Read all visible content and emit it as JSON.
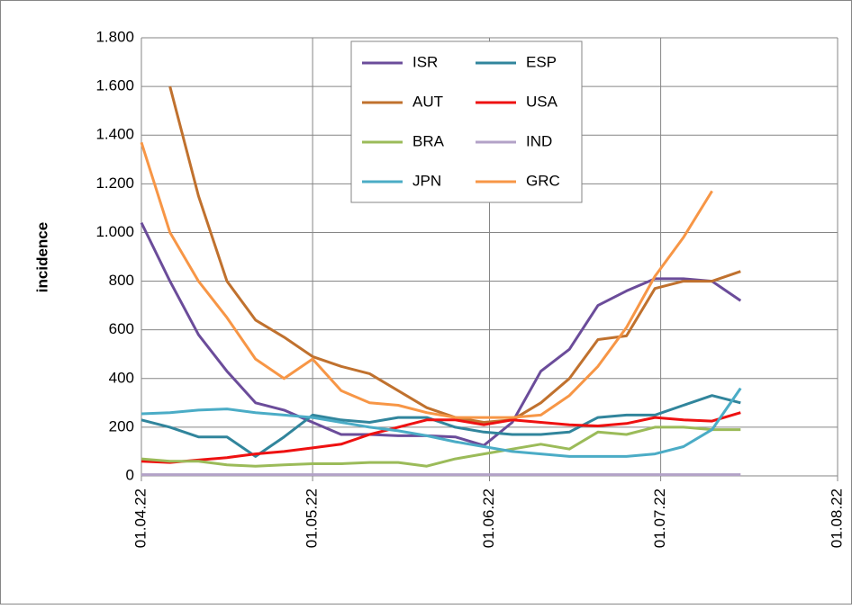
{
  "chart_data": {
    "type": "line",
    "y_label": "incidence",
    "x": [
      "2022-04-01",
      "2022-04-06",
      "2022-04-11",
      "2022-04-16",
      "2022-04-21",
      "2022-04-26",
      "2022-05-01",
      "2022-05-06",
      "2022-05-11",
      "2022-05-16",
      "2022-05-21",
      "2022-05-26",
      "2022-05-31",
      "2022-06-05",
      "2022-06-10",
      "2022-06-15",
      "2022-06-20",
      "2022-06-25",
      "2022-06-30",
      "2022-07-05",
      "2022-07-10",
      "2022-07-15"
    ],
    "xlim": [
      "2022-04-01",
      "2022-08-01"
    ],
    "xticks": [
      {
        "value": "2022-04-01",
        "label": "01.04.22"
      },
      {
        "value": "2022-05-01",
        "label": "01.05.22"
      },
      {
        "value": "2022-06-01",
        "label": "01.06.22"
      },
      {
        "value": "2022-07-01",
        "label": "01.07.22"
      },
      {
        "value": "2022-08-01",
        "label": "01.08.22"
      }
    ],
    "ylim": [
      0,
      1800
    ],
    "yticks": [
      0,
      200,
      400,
      600,
      800,
      {
        "value": 1000,
        "label": "1.000"
      },
      {
        "value": 1200,
        "label": "1.200"
      },
      {
        "value": 1400,
        "label": "1.400"
      },
      {
        "value": 1600,
        "label": "1.600"
      },
      {
        "value": 1800,
        "label": "1.800"
      }
    ],
    "grid": true,
    "legend": "top",
    "series": [
      {
        "name": "ISR",
        "color": "#6b4c9a",
        "values": [
          1040,
          800,
          580,
          430,
          300,
          270,
          220,
          170,
          170,
          165,
          165,
          160,
          125,
          220,
          430,
          520,
          700,
          760,
          810,
          810,
          800,
          720
        ]
      },
      {
        "name": "ESP",
        "color": "#31859c",
        "values": [
          230,
          200,
          160,
          160,
          80,
          160,
          250,
          230,
          220,
          240,
          240,
          200,
          180,
          170,
          170,
          180,
          240,
          250,
          250,
          290,
          330,
          300
        ]
      },
      {
        "name": "AUT",
        "color": "#c0712e",
        "values": [
          null,
          1600,
          1150,
          800,
          640,
          570,
          490,
          450,
          420,
          350,
          280,
          240,
          220,
          230,
          300,
          400,
          560,
          575,
          770,
          800,
          800,
          840
        ]
      },
      {
        "name": "USA",
        "color": "#ee1111",
        "values": [
          60,
          55,
          65,
          75,
          90,
          100,
          115,
          130,
          170,
          200,
          230,
          230,
          210,
          230,
          220,
          210,
          205,
          215,
          240,
          230,
          225,
          260
        ]
      },
      {
        "name": "BRA",
        "color": "#9bbb59",
        "values": [
          70,
          60,
          60,
          45,
          40,
          45,
          50,
          50,
          55,
          55,
          40,
          70,
          90,
          110,
          130,
          110,
          180,
          170,
          200,
          200,
          190,
          190
        ]
      },
      {
        "name": "IND",
        "color": "#b3a2c7",
        "values": [
          5,
          5,
          5,
          5,
          5,
          5,
          5,
          5,
          5,
          5,
          5,
          5,
          5,
          5,
          5,
          5,
          5,
          5,
          5,
          5,
          5,
          5
        ]
      },
      {
        "name": "JPN",
        "color": "#4bacc6",
        "values": [
          255,
          260,
          270,
          275,
          260,
          250,
          240,
          220,
          200,
          185,
          165,
          140,
          120,
          100,
          90,
          80,
          80,
          80,
          90,
          120,
          190,
          360
        ]
      },
      {
        "name": "GRC",
        "color": "#f79646",
        "values": [
          1370,
          1000,
          800,
          650,
          480,
          400,
          480,
          350,
          300,
          290,
          260,
          240,
          240,
          240,
          250,
          330,
          450,
          610,
          820,
          980,
          1170,
          null
        ]
      }
    ]
  }
}
